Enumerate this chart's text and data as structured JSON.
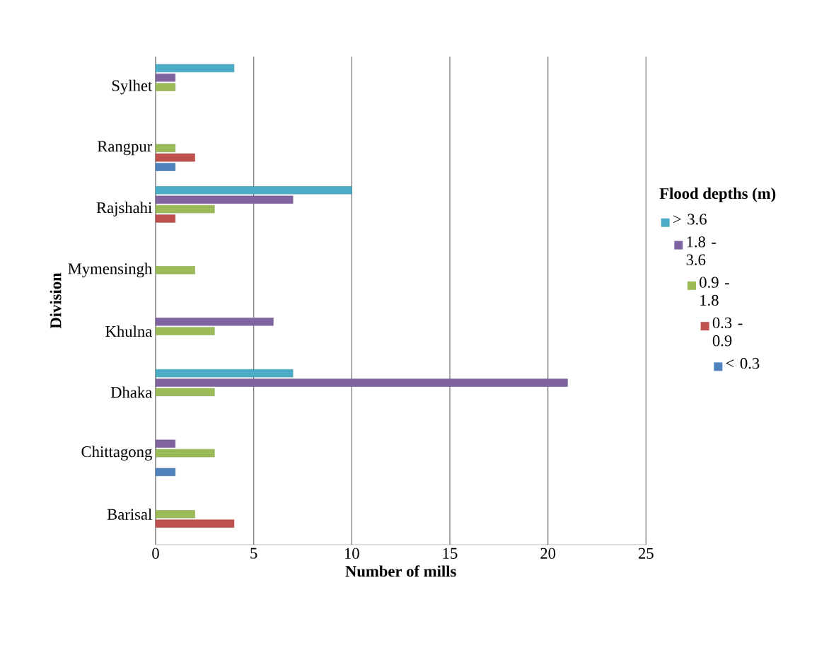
{
  "chart_data": {
    "type": "bar",
    "orientation": "horizontal",
    "xlabel": "Number of mills",
    "ylabel": "Division",
    "legend_title": "Flood depths (m)",
    "categories": [
      "Sylhet",
      "Rangpur",
      "Rajshahi",
      "Mymensingh",
      "Khulna",
      "Dhaka",
      "Chittagong",
      "Barisal"
    ],
    "series": [
      {
        "name": "> 3.6",
        "color": "#4bacc6",
        "values": [
          4,
          null,
          10,
          null,
          null,
          7,
          null,
          null
        ]
      },
      {
        "name": "1.8 - 3.6",
        "color": "#8064a2",
        "values": [
          1,
          null,
          7,
          null,
          6,
          21,
          1,
          null
        ]
      },
      {
        "name": "0.9 - 1.8",
        "color": "#9bbb59",
        "values": [
          1,
          1,
          3,
          2,
          3,
          3,
          3,
          2
        ]
      },
      {
        "name": "0.3 - 0.9",
        "color": "#c0504d",
        "values": [
          null,
          2,
          1,
          null,
          null,
          null,
          null,
          4
        ]
      },
      {
        "name": "< 0.3",
        "color": "#4f81bd",
        "values": [
          null,
          1,
          null,
          null,
          null,
          null,
          1,
          null
        ]
      }
    ],
    "xlim": [
      0,
      25
    ],
    "xticks": [
      0,
      5,
      10,
      15,
      20,
      25
    ],
    "grid": "x",
    "legend": "right"
  }
}
